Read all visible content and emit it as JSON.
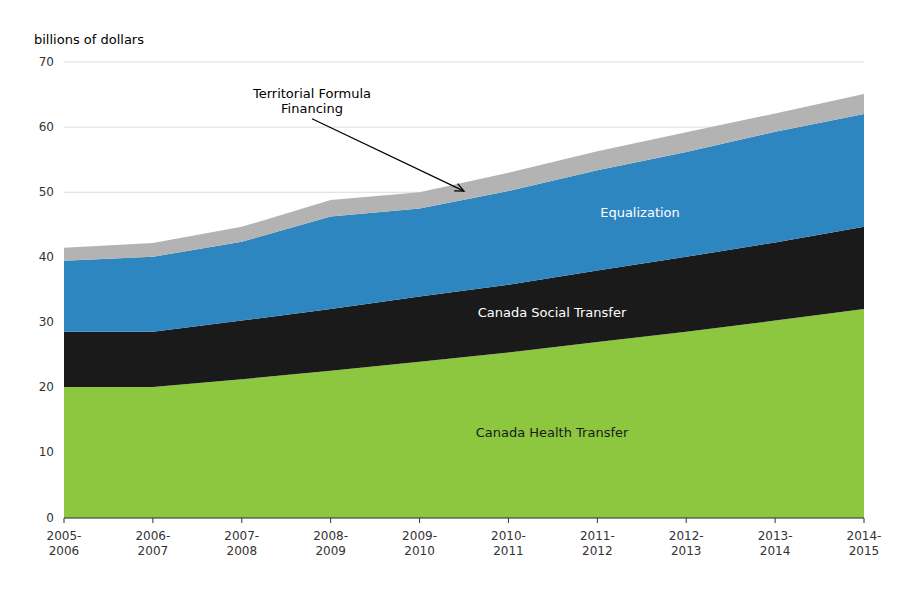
{
  "chart_data": {
    "type": "area",
    "stacked": true,
    "grid": true,
    "y_label": "billions of dollars",
    "categories": [
      "2005-\n2006",
      "2006-\n2007",
      "2007-\n2008",
      "2008-\n2009",
      "2009-\n2010",
      "2010-\n2011",
      "2011-\n2012",
      "2012-\n2013",
      "2013-\n2014",
      "2014-\n2015"
    ],
    "series": [
      {
        "name": "Canada Health Transfer",
        "color": "#8dc63f",
        "values": [
          20.1,
          20.1,
          21.3,
          22.6,
          24.0,
          25.4,
          27.0,
          28.6,
          30.3,
          32.1
        ]
      },
      {
        "name": "Canada Social Transfer",
        "color": "#1a1a1a",
        "values": [
          8.5,
          8.5,
          9.0,
          9.5,
          10.0,
          10.4,
          11.0,
          11.5,
          12.0,
          12.6
        ]
      },
      {
        "name": "Equalization",
        "color": "#2e86c1",
        "values": [
          10.9,
          11.5,
          12.1,
          14.2,
          13.5,
          14.4,
          15.4,
          16.1,
          17.0,
          17.3
        ]
      },
      {
        "name": "Territorial Formula\nFinancing",
        "color": "#b3b3b3",
        "values": [
          2.0,
          2.1,
          2.3,
          2.5,
          2.5,
          2.8,
          2.9,
          3.0,
          2.8,
          3.1
        ]
      }
    ],
    "ylim": [
      0,
      70
    ],
    "yticks": [
      0,
      10,
      20,
      30,
      40,
      50,
      60,
      70
    ]
  }
}
